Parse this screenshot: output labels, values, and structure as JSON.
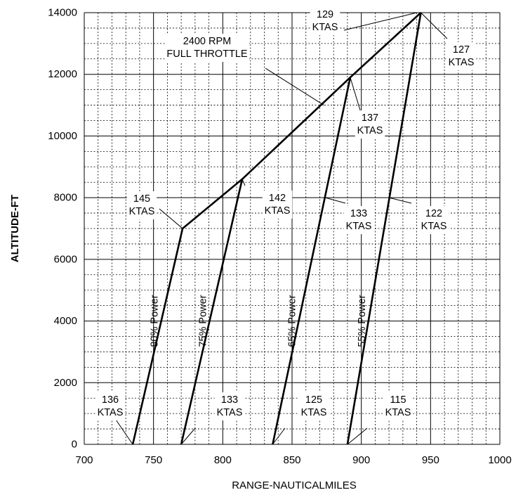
{
  "chart_data": {
    "type": "line",
    "title": "",
    "xlabel": "RANGE-NAUTICALMILES",
    "ylabel": "ALTITUDE-FT",
    "xlim": [
      700,
      1000
    ],
    "ylim": [
      0,
      14000
    ],
    "x_ticks": [
      700,
      750,
      800,
      850,
      900,
      950,
      1000
    ],
    "y_ticks": [
      0,
      2000,
      4000,
      6000,
      8000,
      10000,
      12000,
      14000
    ],
    "grid": true,
    "series": [
      {
        "name": "80% Power",
        "points": [
          [
            735,
            0
          ],
          [
            771,
            7000
          ]
        ]
      },
      {
        "name": "75% Power",
        "points": [
          [
            770,
            0
          ],
          [
            814,
            8600
          ]
        ]
      },
      {
        "name": "65% Power",
        "points": [
          [
            836,
            0
          ],
          [
            892,
            11900
          ]
        ]
      },
      {
        "name": "55% Power",
        "points": [
          [
            890,
            0
          ],
          [
            943,
            14000
          ]
        ]
      },
      {
        "name": "",
        "points": [
          [
            771,
            7000
          ],
          [
            814,
            8600
          ],
          [
            892,
            11900
          ],
          [
            943,
            14000
          ]
        ]
      }
    ],
    "annotations": [
      {
        "lines": [
          "136",
          "KTAS"
        ],
        "point": [
          735,
          0
        ]
      },
      {
        "lines": [
          "133",
          "KTAS"
        ],
        "point": [
          770,
          0
        ]
      },
      {
        "lines": [
          "125",
          "KTAS"
        ],
        "point": [
          836,
          0
        ]
      },
      {
        "lines": [
          "115",
          "KTAS"
        ],
        "point": [
          890,
          0
        ]
      },
      {
        "lines": [
          "145",
          "KTAS"
        ],
        "point": [
          771,
          7000
        ]
      },
      {
        "lines": [
          "142",
          "KTAS"
        ],
        "point": [
          814,
          8600
        ]
      },
      {
        "lines": [
          "133",
          "KTAS"
        ],
        "point": [
          874,
          8000
        ]
      },
      {
        "lines": [
          "122",
          "KTAS"
        ],
        "point": [
          920,
          8000
        ]
      },
      {
        "lines": [
          "137",
          "KTAS"
        ],
        "point": [
          892,
          11900
        ]
      },
      {
        "lines": [
          "129",
          "KTAS"
        ],
        "point": [
          940,
          14000
        ]
      },
      {
        "lines": [
          "127",
          "KTAS"
        ],
        "point": [
          943,
          14000
        ]
      },
      {
        "lines": [
          "2400 RPM",
          "FULL THROTTLE"
        ],
        "point": [
          873,
          11000
        ]
      }
    ]
  }
}
